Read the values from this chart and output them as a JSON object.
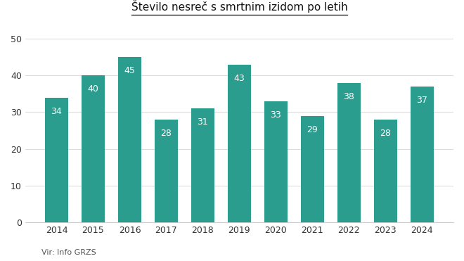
{
  "title": "Število nesreč s smrtnim izidom po letih",
  "years": [
    2014,
    2015,
    2016,
    2017,
    2018,
    2019,
    2020,
    2021,
    2022,
    2023,
    2024
  ],
  "values": [
    34,
    40,
    45,
    28,
    31,
    43,
    33,
    29,
    38,
    28,
    37
  ],
  "bar_color": "#2a9d8f",
  "background_color": "#ffffff",
  "label_color": "#ffffff",
  "yticks": [
    0,
    10,
    20,
    30,
    40,
    50
  ],
  "ylim": [
    0,
    52
  ],
  "source_text": "Vir: Info GRZS",
  "title_fontsize": 11,
  "label_fontsize": 9,
  "tick_fontsize": 9,
  "source_fontsize": 8,
  "grid_color": "#dddddd"
}
